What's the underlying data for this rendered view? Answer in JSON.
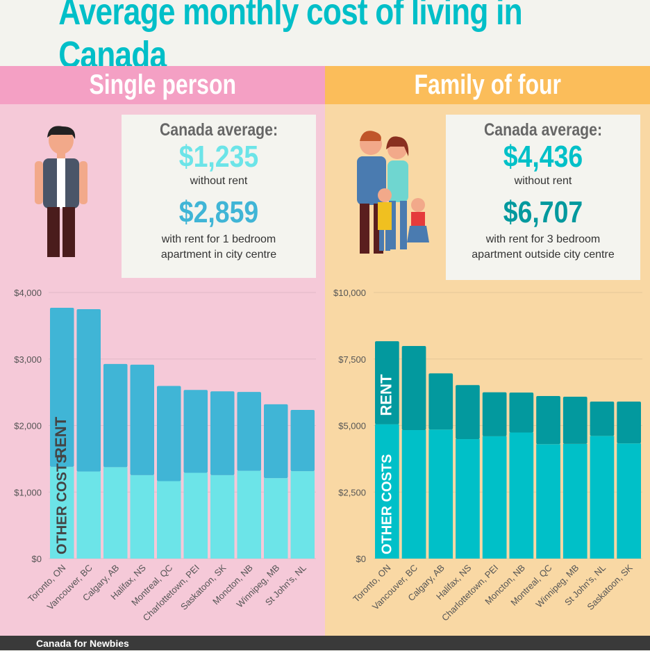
{
  "title": "Average monthly cost of living in Canada",
  "footer": "Canada for Newbies",
  "colors": {
    "title": "#00bfc8",
    "left_other": "#6ce4e8",
    "left_rent": "#40b5d6",
    "right_other": "#00c0c8",
    "right_rent": "#03999e"
  },
  "single": {
    "header": "Single person",
    "avg_label": "Canada average:",
    "without_rent": "$1,235",
    "without_rent_label": "without rent",
    "with_rent": "$2,859",
    "with_rent_label_1": "with rent for 1 bedroom",
    "with_rent_label_2": "apartment in city centre"
  },
  "family": {
    "header": "Family of four",
    "avg_label": "Canada average:",
    "without_rent": "$4,436",
    "without_rent_label": "without rent",
    "with_rent": "$6,707",
    "with_rent_label_1": "with rent for 3 bedroom",
    "with_rent_label_2": "apartment outside city centre"
  },
  "chart_data": [
    {
      "type": "bar",
      "stacked": true,
      "title": "Single person",
      "ylim": [
        0,
        4000
      ],
      "yticks": [
        0,
        1000,
        2000,
        3000,
        4000
      ],
      "ytick_labels": [
        "$0",
        "$1,000",
        "$2,000",
        "$3,000",
        "$4,000"
      ],
      "grid": true,
      "categories": [
        "Toronto, ON",
        "Vancouver, BC",
        "Calgary, AB",
        "Halifax, NS",
        "Montreal, QC",
        "Charlottetown, PEI",
        "Saskatoon, SK",
        "Moncton, NB",
        "Winnipeg, MB",
        "St John's, NL"
      ],
      "series": [
        {
          "name": "OTHER COSTS",
          "values": [
            1380,
            1310,
            1375,
            1255,
            1165,
            1290,
            1255,
            1320,
            1210,
            1315
          ]
        },
        {
          "name": "RENT",
          "values": [
            2390,
            2440,
            1550,
            1660,
            1430,
            1245,
            1260,
            1185,
            1110,
            920
          ]
        }
      ]
    },
    {
      "type": "bar",
      "stacked": true,
      "title": "Family of four",
      "ylim": [
        0,
        10000
      ],
      "yticks": [
        0,
        2500,
        5000,
        7500,
        10000
      ],
      "ytick_labels": [
        "$0",
        "$2,500",
        "$5,000",
        "$7,500",
        "$10,000"
      ],
      "grid": true,
      "categories": [
        "Toronto, ON",
        "Vancouver, BC",
        "Calgary, AB",
        "Halifax, NS",
        "Charlottetown, PEI",
        "Moncton, NB",
        "Montreal, QC",
        "Winnipeg, MB",
        "St John's, NL",
        "Saskatoon, SK"
      ],
      "series": [
        {
          "name": "OTHER COSTS",
          "values": [
            5050,
            4830,
            4850,
            4490,
            4600,
            4740,
            4300,
            4310,
            4610,
            4330
          ]
        },
        {
          "name": "RENT",
          "values": [
            3120,
            3160,
            2110,
            2030,
            1650,
            1500,
            1810,
            1775,
            1290,
            1570
          ]
        }
      ]
    }
  ]
}
